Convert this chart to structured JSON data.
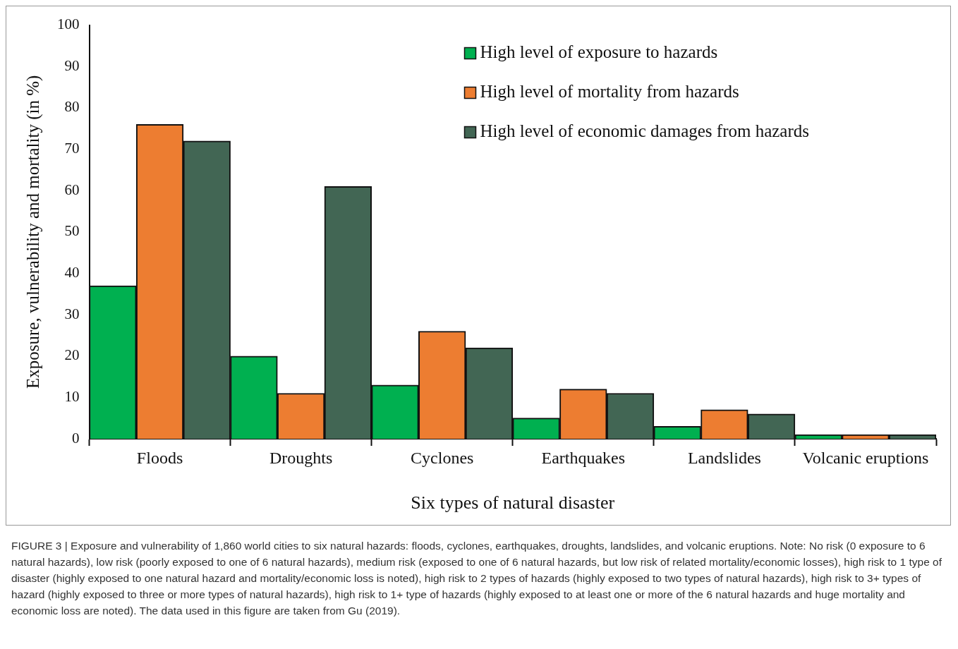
{
  "chart_data": {
    "type": "bar",
    "xlabel": "Six types of natural disaster",
    "ylabel": "Exposure, vulnerability and mortality (in %)",
    "categories": [
      "Floods",
      "Droughts",
      "Cyclones",
      "Earthquakes",
      "Landslides",
      "Volcanic eruptions"
    ],
    "series": [
      {
        "name": "High level of exposure to hazards",
        "color": "#00b050",
        "values": [
          37,
          20,
          13,
          5,
          3,
          1
        ]
      },
      {
        "name": "High level of mortality from hazards",
        "color": "#ed7d31",
        "values": [
          76,
          11,
          26,
          12,
          7,
          1
        ]
      },
      {
        "name": "High level of economic damages from hazards",
        "color": "#426654",
        "values": [
          72,
          61,
          22,
          11,
          6,
          1
        ]
      }
    ],
    "ylim": [
      0,
      100
    ],
    "yticks": [
      0,
      10,
      20,
      30,
      40,
      50,
      60,
      70,
      80,
      90,
      100
    ],
    "grid": false,
    "legend": "top right",
    "annotations": [
      "FIGURE 3 | Exposure and vulnerability of 1,860 world cities to six natural hazards: floods, cyclones, earthquakes, droughts, landslides, and volcanic eruptions. Note: No risk (0 exposure to 6 natural hazards), low risk (poorly exposed to one of 6 natural hazards), medium risk (exposed to one of 6 natural hazards, but low risk of related mortality/economic losses), high risk to 1 type of disaster (highly exposed to one natural hazard and mortality/economic loss is noted), high risk to 2 types of hazards (highly exposed to two types of natural hazards), high risk to 3+ types of hazard (highly exposed to three or more types of natural hazards), high risk to 1+ type of hazards (highly exposed to at least one or more of the 6 natural hazards and huge mortality and economic loss are noted). The data used in this figure are taken from Gu (2019)."
    ]
  }
}
